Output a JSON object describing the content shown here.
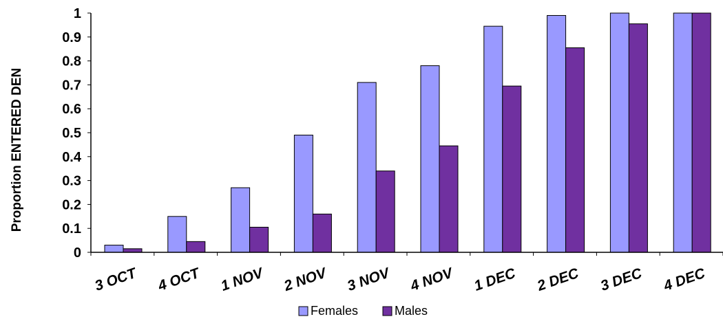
{
  "chart_data": {
    "type": "bar",
    "title": "",
    "xlabel": "",
    "ylabel": "Proportion ENTERED DEN",
    "ylim": [
      0,
      1
    ],
    "yticks": [
      "0",
      "0.1",
      "0.2",
      "0.3",
      "0.4",
      "0.5",
      "0.6",
      "0.7",
      "0.8",
      "0.9",
      "1"
    ],
    "categories": [
      "3 OCT",
      "4 OCT",
      "1 NOV",
      "2 NOV",
      "3 NOV",
      "4 NOV",
      "1 DEC",
      "2 DEC",
      "3 DEC",
      "4 DEC"
    ],
    "series": [
      {
        "name": "Females",
        "color": "#9999ff",
        "values": [
          0.03,
          0.15,
          0.27,
          0.49,
          0.71,
          0.78,
          0.945,
          0.99,
          1.0,
          1.0
        ]
      },
      {
        "name": "Males",
        "color": "#7030a0",
        "values": [
          0.015,
          0.045,
          0.105,
          0.16,
          0.34,
          0.445,
          0.695,
          0.855,
          0.955,
          1.0
        ]
      }
    ],
    "grid": false,
    "legend_position": "bottom"
  }
}
